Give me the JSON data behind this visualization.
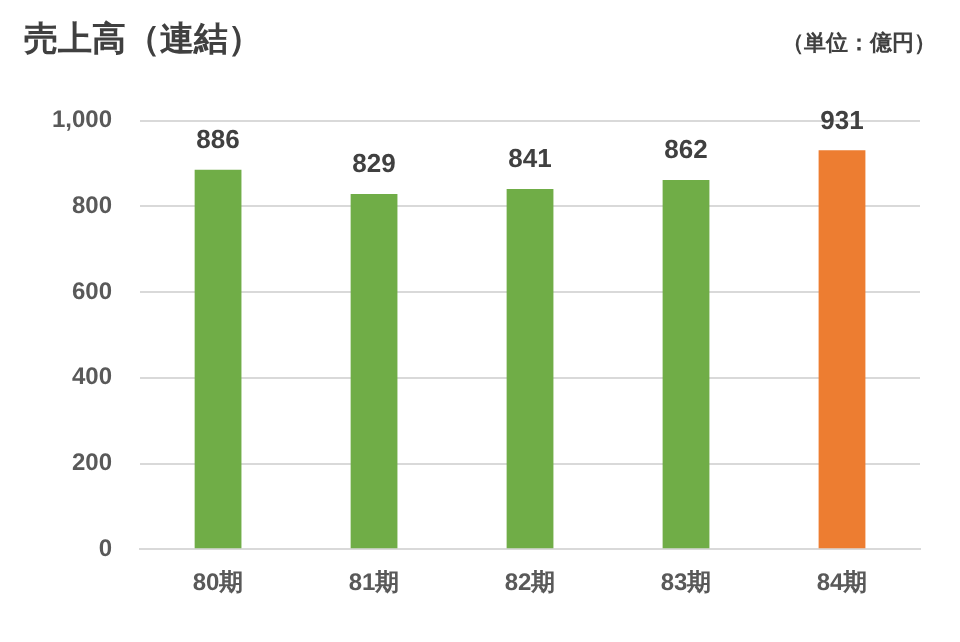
{
  "chart_data": {
    "type": "bar",
    "title": "売上高（連結）",
    "annotations": [
      "（単位：億円）"
    ],
    "categories": [
      "80期",
      "81期",
      "82期",
      "83期",
      "84期"
    ],
    "values": [
      886,
      829,
      841,
      862,
      931
    ],
    "colors": [
      "#70ad47",
      "#70ad47",
      "#70ad47",
      "#70ad47",
      "#ed7d31"
    ],
    "ylim": [
      0,
      1000
    ],
    "yticks": [
      0,
      200,
      400,
      600,
      800,
      {
        "value": 1000,
        "label": "1,000"
      }
    ],
    "grid": "y",
    "data_labels": true
  }
}
